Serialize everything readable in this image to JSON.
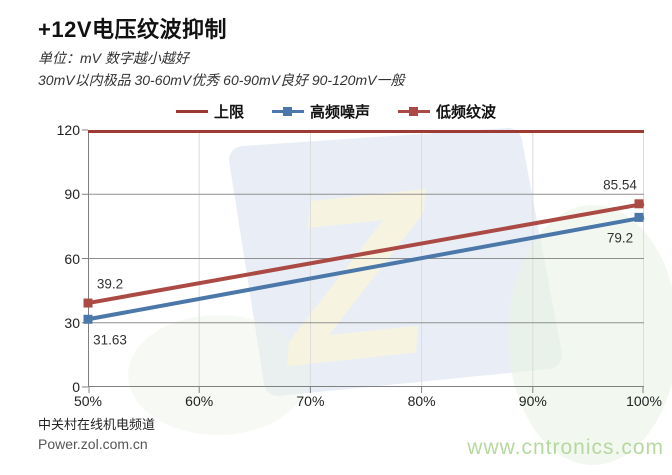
{
  "page": {
    "title": "+12V电压纹波抑制",
    "subtitle1": "单位：mV  数字越小越好",
    "subtitle2": "30mV以内极品  30-60mV优秀  60-90mV良好  90-120mV一般",
    "footer": {
      "channel": "中关村在线机电频道",
      "url": "Power.zol.com.cn",
      "site_watermark": "www.cntronics.com"
    },
    "icons": {
      "background_watermark": "zol-logo"
    }
  },
  "colors": {
    "limit_line": "#9e3a34",
    "high_freq_noise": "#4b77a9",
    "low_freq_ripple": "#ab4a45",
    "grid_horizontal": "#8f8f8f",
    "grid_vertical": "#dcdcdc",
    "axis": "#808080",
    "site_watermark_green": "#b5d8a0"
  },
  "chart_data": {
    "type": "line",
    "title": "+12V电压纹波抑制",
    "unit": "mV",
    "xlabel": "",
    "ylabel": "",
    "xmin": 50,
    "xmax": 100,
    "ylim": [
      0,
      120
    ],
    "x_ticks": [
      "50%",
      "60%",
      "70%",
      "80%",
      "90%",
      "100%"
    ],
    "x_tick_values": [
      50,
      60,
      70,
      80,
      90,
      100
    ],
    "y_ticks": [
      0,
      30,
      60,
      90,
      120
    ],
    "grid": true,
    "legend_position": "top",
    "series": [
      {
        "name": "上限",
        "role": "limit",
        "color": "#9e3a34",
        "marker": "none",
        "points": [
          {
            "x": 50,
            "y": 120
          },
          {
            "x": 100,
            "y": 120
          }
        ],
        "show_labels": false
      },
      {
        "name": "高频噪声",
        "role": "data",
        "color": "#4b77a9",
        "marker": "square",
        "points": [
          {
            "x": 50,
            "y": 31.63
          },
          {
            "x": 100,
            "y": 79.2
          }
        ],
        "show_labels": true,
        "label_position": "below"
      },
      {
        "name": "低频纹波",
        "role": "data",
        "color": "#ab4a45",
        "marker": "square",
        "points": [
          {
            "x": 50,
            "y": 39.2
          },
          {
            "x": 100,
            "y": 85.54
          }
        ],
        "show_labels": true,
        "label_position": "above"
      }
    ]
  }
}
